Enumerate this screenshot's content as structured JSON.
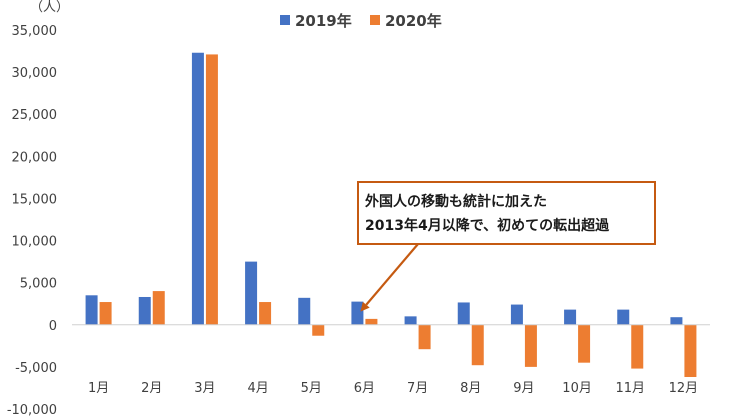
{
  "chart_data": {
    "type": "bar",
    "unit_label": "（人）",
    "categories": [
      "1月",
      "2月",
      "3月",
      "4月",
      "5月",
      "6月",
      "7月",
      "8月",
      "9月",
      "10月",
      "11月",
      "12月"
    ],
    "series": [
      {
        "name": "2019年",
        "color": "#4472C4",
        "values": [
          3500,
          3300,
          32300,
          7500,
          3200,
          2750,
          1000,
          2650,
          2400,
          1800,
          1800,
          900
        ]
      },
      {
        "name": "2020年",
        "color": "#ED7D31",
        "values": [
          2700,
          4000,
          32100,
          2700,
          -1300,
          700,
          -2900,
          -4800,
          -5000,
          -4500,
          -5200,
          -6200
        ]
      }
    ],
    "yticks": [
      "35,000",
      "30,000",
      "25,000",
      "20,000",
      "15,000",
      "10,000",
      "5,000",
      "0",
      "-5,000",
      "-10,000"
    ],
    "ylim": [
      -10000,
      35000
    ],
    "legend_position": "top-center",
    "annotation": {
      "line1": "外国人の移動も統計に加えた",
      "line2": "2013年4月以降で、初めての転出超過",
      "target_category": "6月",
      "border_color": "#C55A11"
    }
  }
}
